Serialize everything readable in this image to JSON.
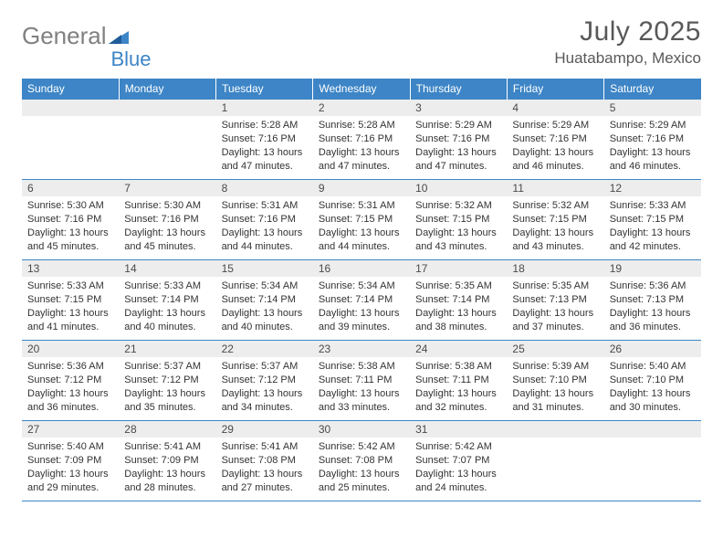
{
  "brand": {
    "part1": "General",
    "part2": "Blue"
  },
  "title": "July 2025",
  "location": "Huatabampo, Mexico",
  "colors": {
    "header_bg": "#3d85c6",
    "header_text": "#ffffff",
    "daynum_bg": "#ededed",
    "border": "#3d85c6",
    "text": "#333333",
    "brand_gray": "#808080",
    "brand_blue": "#3d85c6",
    "title_color": "#595959"
  },
  "typography": {
    "title_fontsize": 30,
    "location_fontsize": 17,
    "dayheader_fontsize": 12,
    "daynum_fontsize": 12,
    "body_fontsize": 11
  },
  "day_headers": [
    "Sunday",
    "Monday",
    "Tuesday",
    "Wednesday",
    "Thursday",
    "Friday",
    "Saturday"
  ],
  "weeks": [
    [
      {
        "n": "",
        "sr": "",
        "ss": "",
        "dl": ""
      },
      {
        "n": "",
        "sr": "",
        "ss": "",
        "dl": ""
      },
      {
        "n": "1",
        "sr": "Sunrise: 5:28 AM",
        "ss": "Sunset: 7:16 PM",
        "dl": "Daylight: 13 hours and 47 minutes."
      },
      {
        "n": "2",
        "sr": "Sunrise: 5:28 AM",
        "ss": "Sunset: 7:16 PM",
        "dl": "Daylight: 13 hours and 47 minutes."
      },
      {
        "n": "3",
        "sr": "Sunrise: 5:29 AM",
        "ss": "Sunset: 7:16 PM",
        "dl": "Daylight: 13 hours and 47 minutes."
      },
      {
        "n": "4",
        "sr": "Sunrise: 5:29 AM",
        "ss": "Sunset: 7:16 PM",
        "dl": "Daylight: 13 hours and 46 minutes."
      },
      {
        "n": "5",
        "sr": "Sunrise: 5:29 AM",
        "ss": "Sunset: 7:16 PM",
        "dl": "Daylight: 13 hours and 46 minutes."
      }
    ],
    [
      {
        "n": "6",
        "sr": "Sunrise: 5:30 AM",
        "ss": "Sunset: 7:16 PM",
        "dl": "Daylight: 13 hours and 45 minutes."
      },
      {
        "n": "7",
        "sr": "Sunrise: 5:30 AM",
        "ss": "Sunset: 7:16 PM",
        "dl": "Daylight: 13 hours and 45 minutes."
      },
      {
        "n": "8",
        "sr": "Sunrise: 5:31 AM",
        "ss": "Sunset: 7:16 PM",
        "dl": "Daylight: 13 hours and 44 minutes."
      },
      {
        "n": "9",
        "sr": "Sunrise: 5:31 AM",
        "ss": "Sunset: 7:15 PM",
        "dl": "Daylight: 13 hours and 44 minutes."
      },
      {
        "n": "10",
        "sr": "Sunrise: 5:32 AM",
        "ss": "Sunset: 7:15 PM",
        "dl": "Daylight: 13 hours and 43 minutes."
      },
      {
        "n": "11",
        "sr": "Sunrise: 5:32 AM",
        "ss": "Sunset: 7:15 PM",
        "dl": "Daylight: 13 hours and 43 minutes."
      },
      {
        "n": "12",
        "sr": "Sunrise: 5:33 AM",
        "ss": "Sunset: 7:15 PM",
        "dl": "Daylight: 13 hours and 42 minutes."
      }
    ],
    [
      {
        "n": "13",
        "sr": "Sunrise: 5:33 AM",
        "ss": "Sunset: 7:15 PM",
        "dl": "Daylight: 13 hours and 41 minutes."
      },
      {
        "n": "14",
        "sr": "Sunrise: 5:33 AM",
        "ss": "Sunset: 7:14 PM",
        "dl": "Daylight: 13 hours and 40 minutes."
      },
      {
        "n": "15",
        "sr": "Sunrise: 5:34 AM",
        "ss": "Sunset: 7:14 PM",
        "dl": "Daylight: 13 hours and 40 minutes."
      },
      {
        "n": "16",
        "sr": "Sunrise: 5:34 AM",
        "ss": "Sunset: 7:14 PM",
        "dl": "Daylight: 13 hours and 39 minutes."
      },
      {
        "n": "17",
        "sr": "Sunrise: 5:35 AM",
        "ss": "Sunset: 7:14 PM",
        "dl": "Daylight: 13 hours and 38 minutes."
      },
      {
        "n": "18",
        "sr": "Sunrise: 5:35 AM",
        "ss": "Sunset: 7:13 PM",
        "dl": "Daylight: 13 hours and 37 minutes."
      },
      {
        "n": "19",
        "sr": "Sunrise: 5:36 AM",
        "ss": "Sunset: 7:13 PM",
        "dl": "Daylight: 13 hours and 36 minutes."
      }
    ],
    [
      {
        "n": "20",
        "sr": "Sunrise: 5:36 AM",
        "ss": "Sunset: 7:12 PM",
        "dl": "Daylight: 13 hours and 36 minutes."
      },
      {
        "n": "21",
        "sr": "Sunrise: 5:37 AM",
        "ss": "Sunset: 7:12 PM",
        "dl": "Daylight: 13 hours and 35 minutes."
      },
      {
        "n": "22",
        "sr": "Sunrise: 5:37 AM",
        "ss": "Sunset: 7:12 PM",
        "dl": "Daylight: 13 hours and 34 minutes."
      },
      {
        "n": "23",
        "sr": "Sunrise: 5:38 AM",
        "ss": "Sunset: 7:11 PM",
        "dl": "Daylight: 13 hours and 33 minutes."
      },
      {
        "n": "24",
        "sr": "Sunrise: 5:38 AM",
        "ss": "Sunset: 7:11 PM",
        "dl": "Daylight: 13 hours and 32 minutes."
      },
      {
        "n": "25",
        "sr": "Sunrise: 5:39 AM",
        "ss": "Sunset: 7:10 PM",
        "dl": "Daylight: 13 hours and 31 minutes."
      },
      {
        "n": "26",
        "sr": "Sunrise: 5:40 AM",
        "ss": "Sunset: 7:10 PM",
        "dl": "Daylight: 13 hours and 30 minutes."
      }
    ],
    [
      {
        "n": "27",
        "sr": "Sunrise: 5:40 AM",
        "ss": "Sunset: 7:09 PM",
        "dl": "Daylight: 13 hours and 29 minutes."
      },
      {
        "n": "28",
        "sr": "Sunrise: 5:41 AM",
        "ss": "Sunset: 7:09 PM",
        "dl": "Daylight: 13 hours and 28 minutes."
      },
      {
        "n": "29",
        "sr": "Sunrise: 5:41 AM",
        "ss": "Sunset: 7:08 PM",
        "dl": "Daylight: 13 hours and 27 minutes."
      },
      {
        "n": "30",
        "sr": "Sunrise: 5:42 AM",
        "ss": "Sunset: 7:08 PM",
        "dl": "Daylight: 13 hours and 25 minutes."
      },
      {
        "n": "31",
        "sr": "Sunrise: 5:42 AM",
        "ss": "Sunset: 7:07 PM",
        "dl": "Daylight: 13 hours and 24 minutes."
      },
      {
        "n": "",
        "sr": "",
        "ss": "",
        "dl": ""
      },
      {
        "n": "",
        "sr": "",
        "ss": "",
        "dl": ""
      }
    ]
  ]
}
